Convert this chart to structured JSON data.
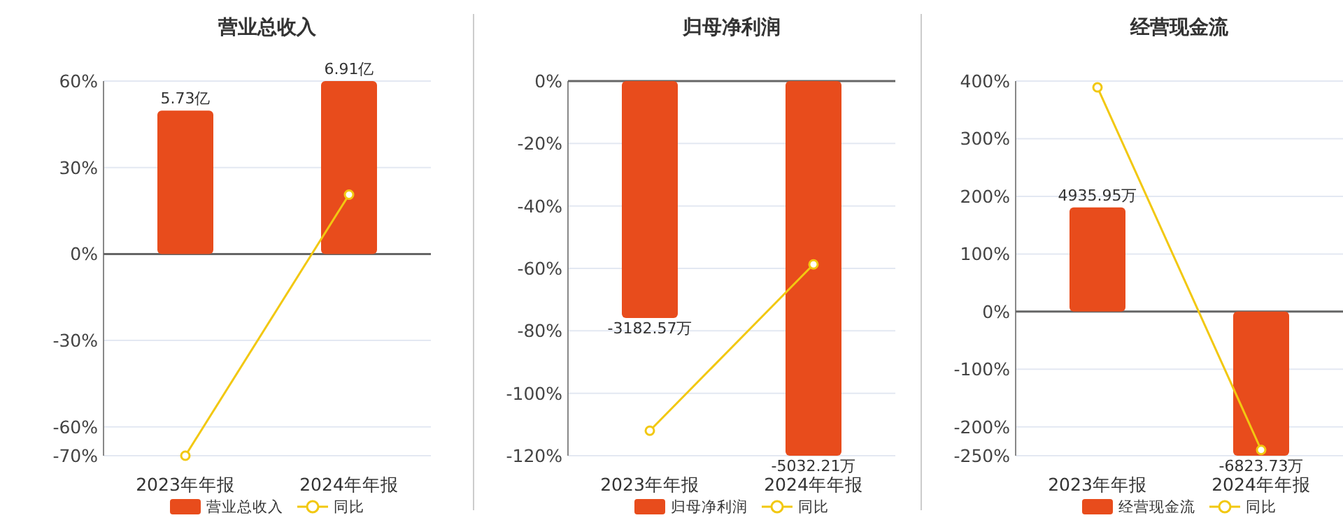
{
  "chart_data": [
    {
      "type": "bar",
      "title": "营业总收入",
      "categories": [
        "2023年年报",
        "2024年年报"
      ],
      "series": [
        {
          "name": "营业总收入",
          "type": "bar",
          "axis": "y2",
          "color": "#e84c1c",
          "values": [
            5.73,
            6.91
          ],
          "value_labels": [
            "5.73亿",
            "6.91亿"
          ]
        },
        {
          "name": "同比",
          "type": "line",
          "color": "#f2c811",
          "marker": "circle",
          "values": [
            -70,
            20.6
          ]
        }
      ],
      "ylim": [
        -70,
        60
      ],
      "yticks": [
        {
          "value": -70,
          "label": "-70%"
        },
        {
          "value": -60,
          "label": "-60%"
        },
        {
          "value": -30,
          "label": "-30%"
        },
        {
          "value": 0,
          "label": "0%"
        },
        {
          "value": 30,
          "label": "30%"
        },
        {
          "value": 60,
          "label": "60%"
        }
      ],
      "grid": "y",
      "legend": "bottom"
    },
    {
      "type": "bar",
      "title": "归母净利润",
      "categories": [
        "2023年年报",
        "2024年年报"
      ],
      "series": [
        {
          "name": "归母净利润",
          "type": "bar",
          "axis": "y2",
          "color": "#e84c1c",
          "values": [
            -3182.57,
            -5032.21
          ],
          "value_labels": [
            "-3182.57万",
            "-5032.21万"
          ]
        },
        {
          "name": "同比",
          "type": "line",
          "color": "#f2c811",
          "marker": "circle",
          "values": [
            -112,
            -58.7
          ]
        }
      ],
      "ylim": [
        -120,
        0
      ],
      "yticks": [
        {
          "value": -120,
          "label": "-120%"
        },
        {
          "value": -100,
          "label": "-100%"
        },
        {
          "value": -80,
          "label": "-80%"
        },
        {
          "value": -60,
          "label": "-60%"
        },
        {
          "value": -40,
          "label": "-40%"
        },
        {
          "value": -20,
          "label": "-20%"
        },
        {
          "value": 0,
          "label": "0%"
        }
      ],
      "grid": "y",
      "legend": "bottom"
    },
    {
      "type": "bar",
      "title": "经营现金流",
      "categories": [
        "2023年年报",
        "2024年年报"
      ],
      "series": [
        {
          "name": "经营现金流",
          "type": "bar",
          "axis": "y2",
          "color": "#e84c1c",
          "values": [
            4935.95,
            -6823.73
          ],
          "value_labels": [
            "4935.95万",
            "-6823.73万"
          ]
        },
        {
          "name": "同比",
          "type": "line",
          "color": "#f2c811",
          "marker": "circle",
          "values": [
            389,
            -240
          ]
        }
      ],
      "ylim": [
        -250,
        400
      ],
      "yticks": [
        {
          "value": -250,
          "label": "-250%"
        },
        {
          "value": -200,
          "label": "-200%"
        },
        {
          "value": -100,
          "label": "-100%"
        },
        {
          "value": 0,
          "label": "0%"
        },
        {
          "value": 100,
          "label": "100%"
        },
        {
          "value": 200,
          "label": "200%"
        },
        {
          "value": 300,
          "label": "300%"
        },
        {
          "value": 400,
          "label": "400%"
        }
      ],
      "grid": "y",
      "legend": "bottom"
    }
  ]
}
